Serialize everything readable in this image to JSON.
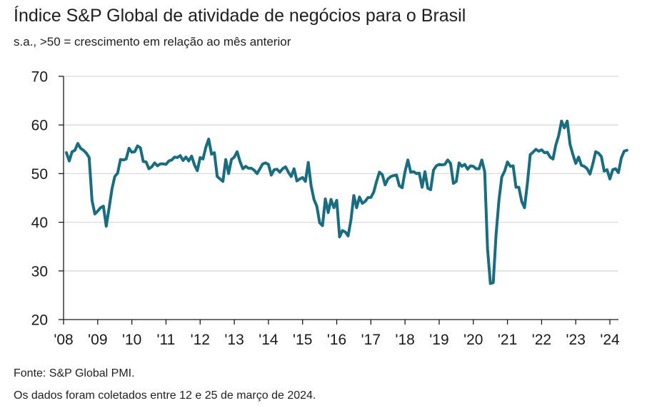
{
  "title": "Índice S&P Global de atividade de negócios para o Brasil",
  "subtitle": "s.a., >50 = crescimento em relação ao mês anterior",
  "footer": {
    "source": "Fonte: S&P Global PMI.",
    "note": "Os dados foram coletados entre 12 e 25  de março de 2024."
  },
  "colors": {
    "line": "#186e80",
    "grid": "#d9d9d9",
    "axis": "#1a1a1a"
  },
  "chart_data": {
    "type": "line",
    "title": "Índice S&P Global de atividade de negócios para o Brasil",
    "subtitle": "s.a., >50 = crescimento em relação ao mês anterior",
    "xlabel": "",
    "ylabel": "",
    "ylim": [
      20,
      70
    ],
    "yticks": [
      20,
      30,
      40,
      50,
      60,
      70
    ],
    "xlim": [
      2008.0,
      2024.25
    ],
    "xticks": [
      {
        "value": 2008,
        "label": "'08"
      },
      {
        "value": 2009,
        "label": "'09"
      },
      {
        "value": 2010,
        "label": "'10"
      },
      {
        "value": 2011,
        "label": "'11"
      },
      {
        "value": 2012,
        "label": "'12"
      },
      {
        "value": 2013,
        "label": "'13"
      },
      {
        "value": 2014,
        "label": "'14"
      },
      {
        "value": 2015,
        "label": "'15"
      },
      {
        "value": 2016,
        "label": "'16"
      },
      {
        "value": 2017,
        "label": "'17"
      },
      {
        "value": 2018,
        "label": "'18"
      },
      {
        "value": 2019,
        "label": "'19"
      },
      {
        "value": 2020,
        "label": "'20"
      },
      {
        "value": 2021,
        "label": "'21"
      },
      {
        "value": 2022,
        "label": "'22"
      },
      {
        "value": 2023,
        "label": "'23"
      },
      {
        "value": 2024,
        "label": "'24"
      }
    ],
    "grid": true,
    "series": [
      {
        "name": "Índice de atividade de negócios",
        "start": "2008-02",
        "frequency": "monthly",
        "values": [
          54.3,
          52.6,
          54.5,
          54.8,
          56.2,
          55.2,
          54.8,
          54.2,
          53.3,
          44.5,
          41.7,
          42.3,
          43.0,
          43.3,
          39.2,
          42.9,
          46.8,
          49.4,
          50.1,
          52.9,
          52.8,
          53.0,
          55.2,
          54.4,
          54.5,
          55.7,
          55.3,
          52.5,
          52.4,
          51.0,
          51.4,
          52.2,
          51.6,
          52.0,
          52.0,
          51.9,
          52.6,
          52.8,
          53.4,
          53.3,
          53.7,
          52.7,
          53.4,
          52.6,
          53.6,
          51.8,
          50.6,
          53.3,
          53.0,
          55.4,
          57.1,
          54.0,
          54.3,
          49.4,
          48.9,
          48.4,
          52.9,
          50.0,
          52.9,
          53.4,
          54.5,
          52.5,
          51.0,
          51.5,
          51.1,
          51.1,
          50.7,
          50.0,
          51.0,
          52.0,
          52.2,
          51.9,
          49.7,
          50.8,
          50.9,
          50.3,
          51.0,
          51.4,
          50.3,
          49.4,
          51.0,
          48.5,
          48.9,
          49.2,
          48.4,
          52.3,
          47.5,
          44.7,
          43.3,
          39.9,
          39.3,
          44.8,
          42.0,
          44.7,
          43.0,
          44.5,
          37.0,
          38.3,
          38.0,
          37.2,
          40.5,
          45.5,
          43.0,
          45.2,
          43.9,
          44.3,
          45.1,
          45.1,
          46.2,
          48.4,
          50.3,
          49.8,
          47.7,
          48.9,
          49.4,
          49.6,
          49.7,
          47.5,
          47.1,
          50.4,
          52.8,
          50.3,
          50.4,
          50.0,
          50.1,
          47.2,
          50.4,
          47.0,
          46.7,
          50.7,
          51.6,
          51.9,
          51.8,
          51.9,
          52.8,
          52.1,
          48.0,
          48.4,
          52.2,
          51.5,
          51.9,
          50.9,
          51.6,
          51.5,
          51.0,
          51.0,
          52.8,
          50.4,
          34.5,
          27.4,
          27.6,
          37.5,
          44.5,
          49.3,
          50.5,
          52.4,
          51.5,
          51.6,
          47.2,
          47.2,
          44.3,
          43.0,
          48.0,
          53.9,
          54.4,
          55.0,
          54.6,
          54.9,
          54.3,
          54.4,
          53.4,
          53.0,
          55.9,
          57.8,
          60.8,
          59.4,
          60.8,
          56.0,
          53.9,
          52.1,
          53.4,
          51.7,
          51.5,
          51.0,
          49.9,
          52.0,
          54.5,
          54.2,
          53.5,
          50.5,
          50.8,
          48.9,
          50.8,
          51.0,
          50.2,
          53.2,
          54.6,
          54.8
        ]
      }
    ]
  }
}
